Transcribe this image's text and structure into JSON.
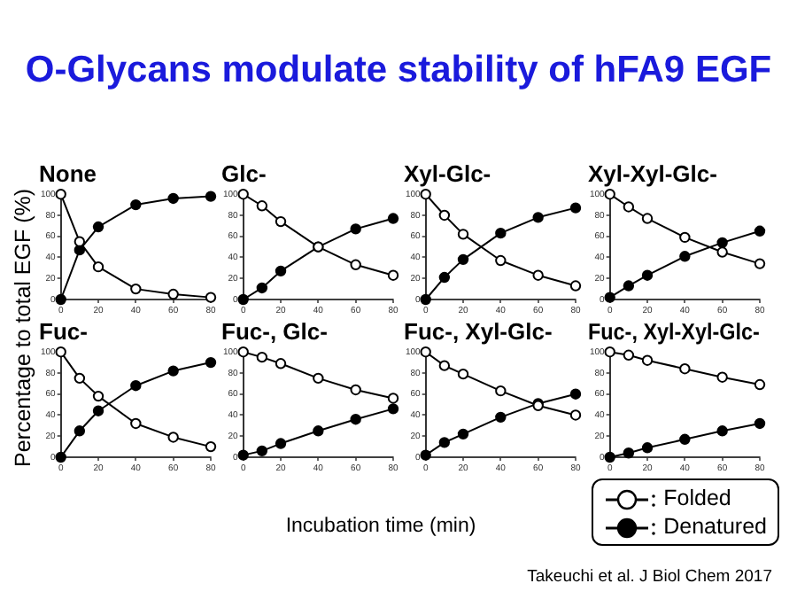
{
  "chart_data": [
    {
      "type": "line",
      "title": "None",
      "legend": "bottom right",
      "ylabel": "Percentage to total EGF (%)",
      "annotations": [
        "O-Glycans modulate stability of hFA9 EGF"
      ],
      "x": [
        0,
        10,
        20,
        40,
        60,
        80
      ],
      "xlim": [
        0,
        80
      ],
      "xticks": [
        0,
        20,
        40,
        60,
        80
      ],
      "ylim": [
        0,
        100
      ],
      "yticks": [
        0,
        20,
        40,
        60,
        80,
        100
      ],
      "marker": "circle",
      "series": [
        {
          "name": "Folded",
          "color": "#ffffff",
          "values": [
            100,
            55,
            31,
            10,
            5,
            2
          ]
        },
        {
          "name": "Denatured",
          "color": "#000000",
          "values": [
            0,
            47,
            69,
            90,
            96,
            98
          ]
        }
      ]
    },
    {
      "type": "line",
      "title": "Glc-",
      "x": [
        0,
        10,
        20,
        40,
        60,
        80
      ],
      "xlim": [
        0,
        80
      ],
      "xticks": [
        0,
        20,
        40,
        60,
        80
      ],
      "ylim": [
        0,
        100
      ],
      "yticks": [
        0,
        20,
        40,
        60,
        80,
        100
      ],
      "marker": "circle",
      "series": [
        {
          "color": "#ffffff",
          "values": [
            100,
            89,
            74,
            50,
            33,
            23
          ]
        },
        {
          "color": "#000000",
          "values": [
            0,
            11,
            27,
            50,
            67,
            77
          ]
        }
      ]
    },
    {
      "type": "line",
      "title": "Xyl-Glc-",
      "x": [
        0,
        10,
        20,
        40,
        60,
        80
      ],
      "xlim": [
        0,
        80
      ],
      "xticks": [
        0,
        20,
        40,
        60,
        80
      ],
      "ylim": [
        0,
        100
      ],
      "yticks": [
        0,
        20,
        40,
        60,
        80,
        100
      ],
      "marker": "circle",
      "series": [
        {
          "color": "#ffffff",
          "values": [
            100,
            80,
            62,
            37,
            23,
            13
          ]
        },
        {
          "color": "#000000",
          "values": [
            0,
            21,
            38,
            63,
            78,
            87
          ]
        }
      ]
    },
    {
      "type": "line",
      "title": "Xyl-Xyl-Glc-",
      "x": [
        0,
        10,
        20,
        40,
        60,
        80
      ],
      "xlim": [
        0,
        80
      ],
      "xticks": [
        0,
        20,
        40,
        60,
        80
      ],
      "ylim": [
        0,
        100
      ],
      "yticks": [
        0,
        20,
        40,
        60,
        80,
        100
      ],
      "marker": "circle",
      "series": [
        {
          "color": "#ffffff",
          "values": [
            100,
            88,
            77,
            59,
            45,
            34
          ]
        },
        {
          "color": "#000000",
          "values": [
            2,
            13,
            23,
            41,
            54,
            65
          ]
        }
      ]
    },
    {
      "type": "line",
      "title": "Fuc-",
      "x": [
        0,
        10,
        20,
        40,
        60,
        80
      ],
      "xlim": [
        0,
        80
      ],
      "xticks": [
        0,
        20,
        40,
        60,
        80
      ],
      "ylim": [
        0,
        100
      ],
      "yticks": [
        0,
        20,
        40,
        60,
        80,
        100
      ],
      "marker": "circle",
      "series": [
        {
          "color": "#ffffff",
          "values": [
            100,
            75,
            58,
            32,
            19,
            10
          ]
        },
        {
          "color": "#000000",
          "values": [
            0,
            25,
            44,
            68,
            82,
            90
          ]
        }
      ]
    },
    {
      "type": "line",
      "title": "Fuc-, Glc-",
      "xlabel": "Incubation time (min)",
      "x": [
        0,
        10,
        20,
        40,
        60,
        80
      ],
      "xlim": [
        0,
        80
      ],
      "xticks": [
        0,
        20,
        40,
        60,
        80
      ],
      "ylim": [
        0,
        100
      ],
      "yticks": [
        0,
        20,
        40,
        60,
        80,
        100
      ],
      "marker": "circle",
      "series": [
        {
          "color": "#ffffff",
          "values": [
            100,
            95,
            89,
            75,
            64,
            56
          ]
        },
        {
          "color": "#000000",
          "values": [
            2,
            6,
            13,
            25,
            36,
            46
          ]
        }
      ]
    },
    {
      "type": "line",
      "title": "Fuc-, Xyl-Glc-",
      "x": [
        0,
        10,
        20,
        40,
        60,
        80
      ],
      "xlim": [
        0,
        80
      ],
      "xticks": [
        0,
        20,
        40,
        60,
        80
      ],
      "ylim": [
        0,
        100
      ],
      "yticks": [
        0,
        20,
        40,
        60,
        80,
        100
      ],
      "marker": "circle",
      "series": [
        {
          "color": "#ffffff",
          "values": [
            100,
            87,
            79,
            63,
            49,
            40
          ]
        },
        {
          "color": "#000000",
          "values": [
            2,
            14,
            22,
            38,
            51,
            60
          ]
        }
      ]
    },
    {
      "type": "line",
      "title": "Fuc-, Xyl-Xyl-Glc-",
      "annotations": [
        "Takeuchi et al. J Biol Chem 2017"
      ],
      "x": [
        0,
        10,
        20,
        40,
        60,
        80
      ],
      "xlim": [
        0,
        80
      ],
      "xticks": [
        0,
        20,
        40,
        60,
        80
      ],
      "ylim": [
        0,
        100
      ],
      "yticks": [
        0,
        20,
        40,
        60,
        80,
        100
      ],
      "marker": "circle",
      "series": [
        {
          "color": "#ffffff",
          "values": [
            100,
            97,
            92,
            84,
            76,
            69
          ]
        },
        {
          "color": "#000000",
          "values": [
            0,
            4,
            9,
            17,
            25,
            32
          ]
        }
      ]
    }
  ]
}
